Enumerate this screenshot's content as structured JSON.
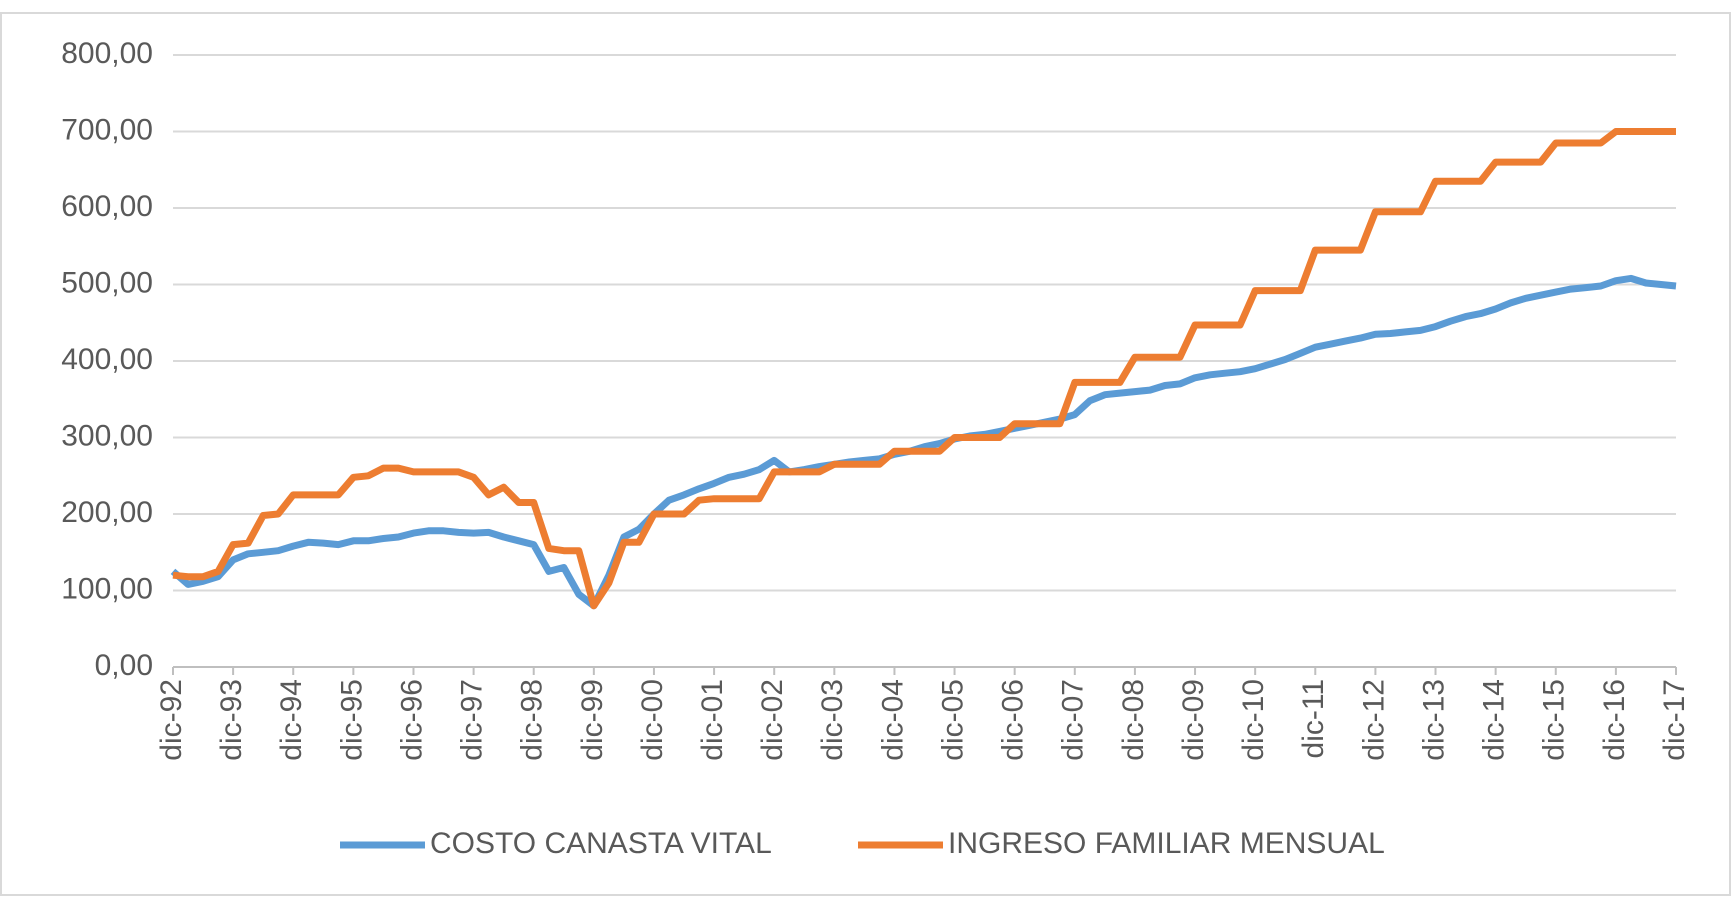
{
  "chart_data": {
    "type": "line",
    "categories": [
      "dic-92",
      null,
      null,
      null,
      "dic-93",
      null,
      null,
      null,
      "dic-94",
      null,
      null,
      null,
      "dic-95",
      null,
      null,
      null,
      "dic-96",
      null,
      null,
      null,
      "dic-97",
      null,
      null,
      null,
      "dic-98",
      null,
      null,
      null,
      "dic-99",
      null,
      null,
      null,
      "dic-00",
      null,
      null,
      null,
      "dic-01",
      null,
      null,
      null,
      "dic-02",
      null,
      null,
      null,
      "dic-03",
      null,
      null,
      null,
      "dic-04",
      null,
      null,
      null,
      "dic-05",
      null,
      null,
      null,
      "dic-06",
      null,
      null,
      null,
      "dic-07",
      null,
      null,
      null,
      "dic-08",
      null,
      null,
      null,
      "dic-09",
      null,
      null,
      null,
      "dic-10",
      null,
      null,
      null,
      "dic-11",
      null,
      null,
      null,
      "dic-12",
      null,
      null,
      null,
      "dic-13",
      null,
      null,
      null,
      "dic-14",
      null,
      null,
      null,
      "dic-15",
      null,
      null,
      null,
      "dic-16",
      null,
      null,
      null,
      "dic-17"
    ],
    "series": [
      {
        "name": "COSTO CANASTA VITAL",
        "color": "#5b9bd5",
        "values": [
          125,
          108,
          112,
          118,
          140,
          148,
          150,
          152,
          158,
          163,
          162,
          160,
          165,
          165,
          168,
          170,
          175,
          178,
          178,
          176,
          175,
          176,
          170,
          165,
          160,
          125,
          130,
          95,
          80,
          120,
          170,
          180,
          200,
          218,
          225,
          233,
          240,
          248,
          252,
          258,
          270,
          255,
          258,
          262,
          265,
          268,
          270,
          272,
          278,
          282,
          288,
          292,
          298,
          302,
          304,
          308,
          312,
          316,
          320,
          324,
          330,
          348,
          356,
          358,
          360,
          362,
          368,
          370,
          378,
          382,
          384,
          386,
          390,
          396,
          402,
          410,
          418,
          422,
          426,
          430,
          435,
          436,
          438,
          440,
          445,
          452,
          458,
          462,
          468,
          476,
          482,
          486,
          490,
          494,
          496,
          498,
          505,
          508,
          502,
          500,
          498
        ]
      },
      {
        "name": "INGRESO FAMILIAR MENSUAL",
        "color": "#ed7d31",
        "values": [
          120,
          118,
          118,
          125,
          160,
          162,
          198,
          200,
          225,
          225,
          225,
          225,
          248,
          250,
          260,
          260,
          255,
          255,
          255,
          255,
          248,
          225,
          235,
          215,
          215,
          155,
          152,
          152,
          80,
          110,
          163,
          163,
          200,
          200,
          200,
          218,
          220,
          220,
          220,
          220,
          255,
          255,
          255,
          255,
          265,
          265,
          265,
          265,
          282,
          282,
          282,
          282,
          300,
          300,
          300,
          300,
          318,
          318,
          318,
          318,
          372,
          372,
          372,
          372,
          405,
          405,
          405,
          405,
          447,
          447,
          447,
          447,
          492,
          492,
          492,
          492,
          545,
          545,
          545,
          545,
          595,
          595,
          595,
          595,
          635,
          635,
          635,
          635,
          660,
          660,
          660,
          660,
          685,
          685,
          685,
          685,
          700,
          700,
          700,
          700,
          700
        ]
      }
    ],
    "ylim": [
      0,
      800
    ],
    "yticks": [
      {
        "value": 0,
        "label": "0,00"
      },
      {
        "value": 100,
        "label": "100,00"
      },
      {
        "value": 200,
        "label": "200,00"
      },
      {
        "value": 300,
        "label": "300,00"
      },
      {
        "value": 400,
        "label": "400,00"
      },
      {
        "value": 500,
        "label": "500,00"
      },
      {
        "value": 600,
        "label": "600,00"
      },
      {
        "value": 700,
        "label": "700,00"
      },
      {
        "value": 800,
        "label": "800,00"
      }
    ],
    "grid": true,
    "legend": "bottom"
  }
}
